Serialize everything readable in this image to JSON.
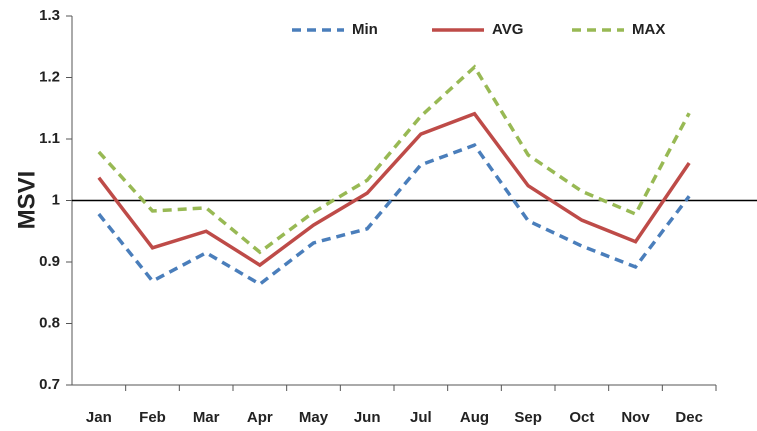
{
  "chart_data": {
    "type": "line",
    "y_label": "MSVI",
    "categories": [
      "Jan",
      "Feb",
      "Mar",
      "Apr",
      "May",
      "Jun",
      "Jul",
      "Aug",
      "Sep",
      "Oct",
      "Nov",
      "Dec"
    ],
    "series": [
      {
        "name": "Min",
        "color": "#4a7ebb",
        "dashed": true,
        "values": [
          0.978,
          0.869,
          0.915,
          0.864,
          0.931,
          0.954,
          1.058,
          1.09,
          0.967,
          0.926,
          0.892,
          1.007
        ]
      },
      {
        "name": "AVG",
        "color": "#be4b48",
        "dashed": false,
        "values": [
          1.037,
          0.923,
          0.95,
          0.895,
          0.96,
          1.012,
          1.108,
          1.141,
          1.024,
          0.968,
          0.933,
          1.061
        ]
      },
      {
        "name": "MAX",
        "color": "#98b954",
        "dashed": true,
        "values": [
          1.079,
          0.983,
          0.988,
          0.916,
          0.981,
          1.033,
          1.137,
          1.217,
          1.074,
          1.015,
          0.978,
          1.142
        ]
      }
    ],
    "reference_line": 1,
    "ylim": [
      0.7,
      1.3
    ],
    "yticks": [
      0.7,
      0.8,
      0.9,
      1,
      1.1,
      1.2,
      1.3
    ],
    "legend": "top-right"
  }
}
